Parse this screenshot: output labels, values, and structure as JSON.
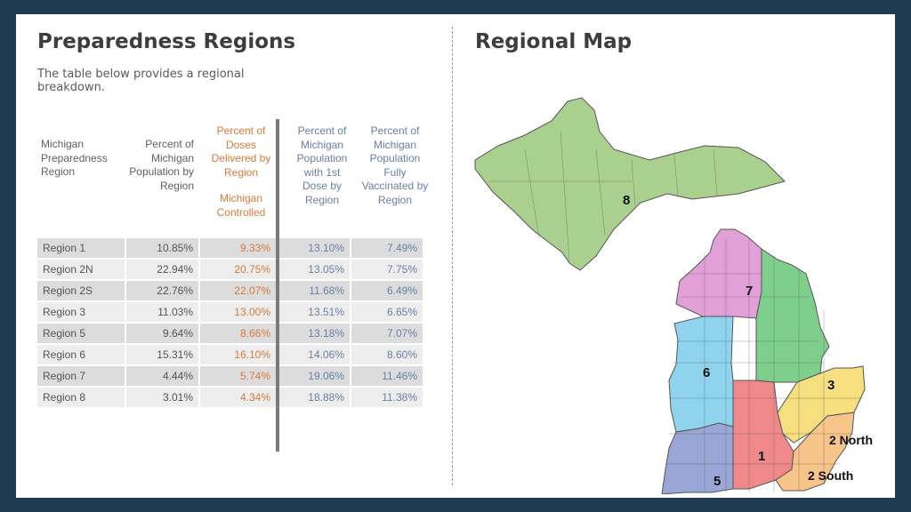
{
  "left_panel": {
    "title": "Preparedness Regions",
    "subtitle": "The table below provides a regional breakdown.",
    "headers": {
      "region": "Michigan Preparedness Region",
      "pop": "Percent of Michigan Population by Region",
      "doses": "Percent of Doses Delivered by Region",
      "doses_sub": "Michigan Controlled",
      "first": "Percent of Michigan Population with 1st Dose by Region",
      "full": "Percent of Michigan Population Fully Vaccinated by Region"
    },
    "rows": [
      {
        "region": "Region 1",
        "pop": "10.85%",
        "doses": "9.33%",
        "first": "13.10%",
        "full": "7.49%"
      },
      {
        "region": "Region 2N",
        "pop": "22.94%",
        "doses": "20.75%",
        "first": "13.05%",
        "full": "7.75%"
      },
      {
        "region": "Region 2S",
        "pop": "22.76%",
        "doses": "22.07%",
        "first": "11.68%",
        "full": "6.49%"
      },
      {
        "region": "Region 3",
        "pop": "11.03%",
        "doses": "13.00%",
        "first": "13.51%",
        "full": "6.65%"
      },
      {
        "region": "Region 5",
        "pop": "9.64%",
        "doses": "8.66%",
        "first": "13.18%",
        "full": "7.07%"
      },
      {
        "region": "Region 6",
        "pop": "15.31%",
        "doses": "16.10%",
        "first": "14.06%",
        "full": "8.60%"
      },
      {
        "region": "Region 7",
        "pop": "4.44%",
        "doses": "5.74%",
        "first": "19.06%",
        "full": "11.46%"
      },
      {
        "region": "Region 8",
        "pop": "3.01%",
        "doses": "4.34%",
        "first": "18.88%",
        "full": "11.38%"
      }
    ]
  },
  "right_panel": {
    "title": "Regional Map",
    "map_labels": {
      "r8": "8",
      "r7": "7",
      "r6": "6",
      "r3": "3",
      "r1": "1",
      "r5": "5",
      "r2n": "2 North",
      "r2s": "2 South"
    }
  },
  "colors": {
    "region8": "#a9d08e",
    "region7": "#e2a0d8",
    "region6": "#8fd3ee",
    "region3": "#7fcf8c",
    "region1": "#f08a8a",
    "region5": "#9aa6d6",
    "region2n": "#f6df7e",
    "region2s": "#f7c48a",
    "orange_text": "#d97a3a",
    "blue_text": "#6a7ea8",
    "frame": "#1f3a52"
  }
}
